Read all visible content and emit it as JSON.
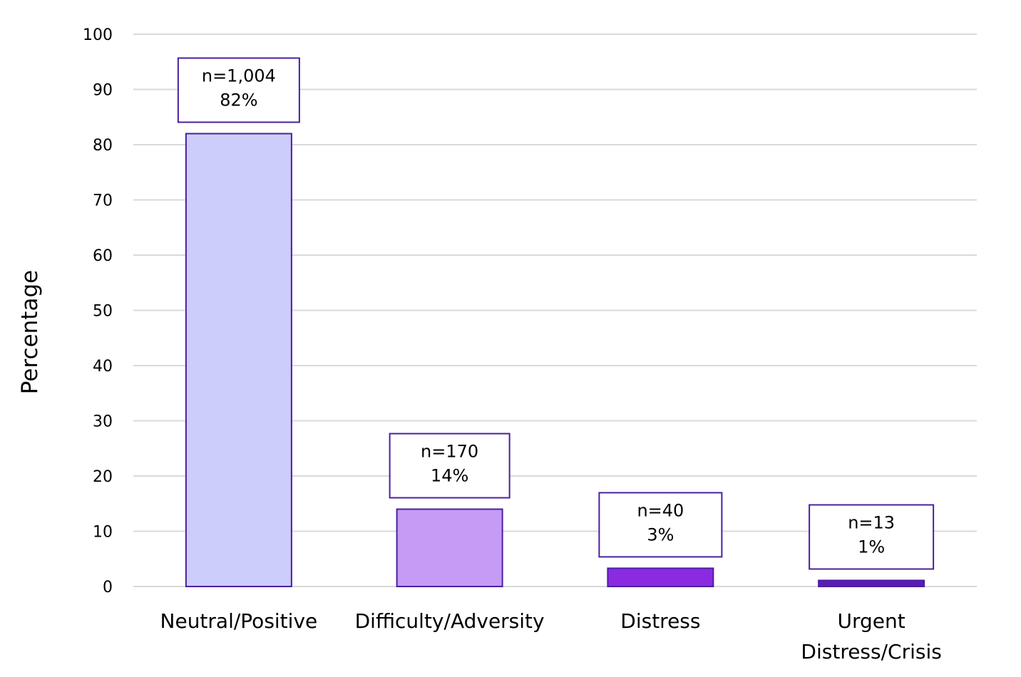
{
  "chart_data": {
    "type": "bar",
    "title": "",
    "xlabel": "",
    "ylabel": "Percentage",
    "ylim": [
      0,
      100
    ],
    "yticks": [
      0,
      10,
      20,
      30,
      40,
      50,
      60,
      70,
      80,
      90,
      100
    ],
    "grid": true,
    "legend": "none",
    "categories": [
      [
        "Neutral/Positive"
      ],
      [
        "Difficulty/Adversity"
      ],
      [
        "Distress"
      ],
      [
        "Urgent",
        "Distress/Crisis"
      ]
    ],
    "values": [
      82,
      14,
      3.3,
      1.1
    ],
    "data_labels": [
      [
        "n=1,004",
        "82%"
      ],
      [
        "n=170",
        "14%"
      ],
      [
        "n=40",
        "3%"
      ],
      [
        "n=13",
        "1%"
      ]
    ],
    "colors": {
      "bars": [
        "#cccdfa",
        "#c49cf5",
        "#8a2be2",
        "#5b1cb5"
      ],
      "bar_outline": "#4b1fa0",
      "label_border": "#4b1fa0",
      "gridline": "#d9d9d9"
    }
  }
}
